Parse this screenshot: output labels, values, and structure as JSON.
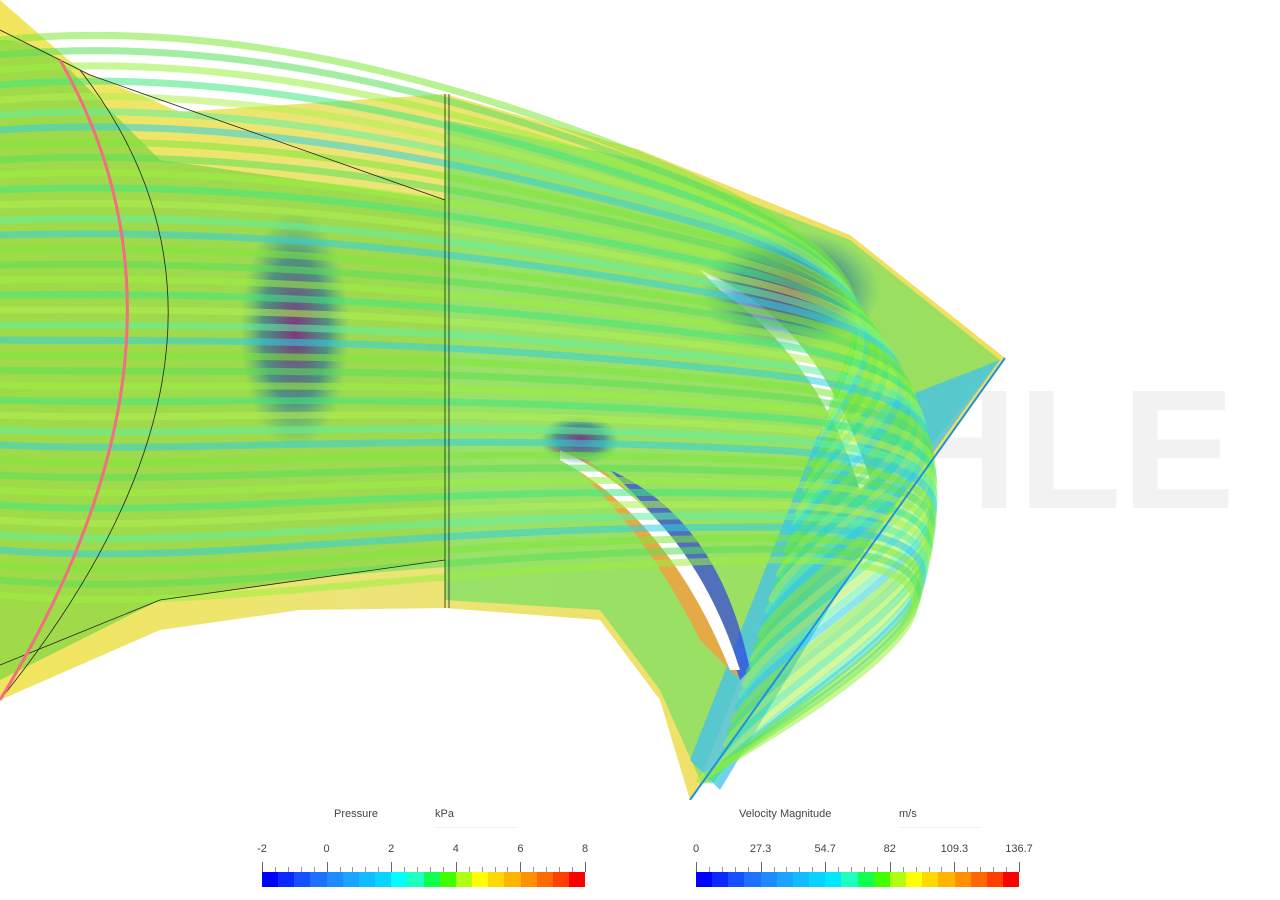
{
  "watermark": "SIMSCALE",
  "legends": [
    {
      "title": "Pressure",
      "unit": "kPa",
      "ticks": [
        "-2",
        "0",
        "2",
        "4",
        "6",
        "8"
      ],
      "min": -2,
      "max": 8,
      "colors": [
        "#0000ff",
        "#0a28ff",
        "#1450ff",
        "#1e70ff",
        "#1e8cff",
        "#18a4ff",
        "#10bcff",
        "#08d4ff",
        "#00ffff",
        "#20ffc0",
        "#10ff50",
        "#40ff00",
        "#b0ff10",
        "#ffff00",
        "#ffd800",
        "#ffb400",
        "#ff9000",
        "#ff6a00",
        "#ff4000",
        "#ff0000"
      ]
    },
    {
      "title": "Velocity Magnitude",
      "unit": "m/s",
      "ticks": [
        "0",
        "27.3",
        "54.7",
        "82",
        "109.3",
        "136.7"
      ],
      "min": 0,
      "max": 136.7,
      "colors": [
        "#0000ff",
        "#0a28ff",
        "#1450ff",
        "#1e70ff",
        "#1e8cff",
        "#18a4ff",
        "#10bcff",
        "#08d4ff",
        "#00e8ff",
        "#20ffc0",
        "#10ff50",
        "#40ff00",
        "#b0ff10",
        "#ffff00",
        "#ffd800",
        "#ffb400",
        "#ff9000",
        "#ff6a00",
        "#ff4000",
        "#ff0000"
      ]
    }
  ]
}
